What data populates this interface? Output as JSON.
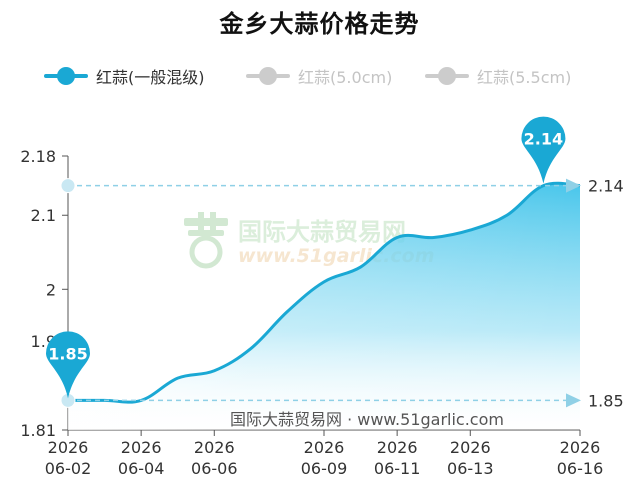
{
  "title": "金乡大蒜价格走势",
  "legend": [
    {
      "label": "红蒜(一般混级)",
      "color": "#1aa8d4",
      "active": true
    },
    {
      "label": "红蒜(5.0cm)",
      "color": "#cccccc",
      "active": false
    },
    {
      "label": "红蒜(5.5cm)",
      "color": "#cccccc",
      "active": false
    }
  ],
  "watermark": {
    "cn": "国际大蒜贸易网",
    "url": "www.51garlic.com"
  },
  "footer": "国际大蒜贸易网 · www.51garlic.com",
  "chart_data": {
    "type": "area",
    "series": [
      {
        "name": "红蒜(一般混级)",
        "color": "#1aa8d4",
        "points": [
          [
            "2026-06-02",
            1.85
          ],
          [
            "2026-06-03",
            1.85
          ],
          [
            "2026-06-04",
            1.85
          ],
          [
            "2026-06-05",
            1.88
          ],
          [
            "2026-06-06",
            1.89
          ],
          [
            "2026-06-07",
            1.92
          ],
          [
            "2026-06-08",
            1.97
          ],
          [
            "2026-06-09",
            2.01
          ],
          [
            "2026-06-10",
            2.03
          ],
          [
            "2026-06-11",
            2.07
          ],
          [
            "2026-06-12",
            2.07
          ],
          [
            "2026-06-13",
            2.08
          ],
          [
            "2026-06-14",
            2.1
          ],
          [
            "2026-06-15",
            2.14
          ],
          [
            "2026-06-16",
            2.14
          ]
        ]
      }
    ],
    "x_ticks": [
      {
        "date": "2026-06-02",
        "year": "2026",
        "md": "06-02"
      },
      {
        "date": "2026-06-04",
        "year": "2026",
        "md": "06-04"
      },
      {
        "date": "2026-06-06",
        "year": "2026",
        "md": "06-06"
      },
      {
        "date": "2026-06-09",
        "year": "2026",
        "md": "06-09"
      },
      {
        "date": "2026-06-11",
        "year": "2026",
        "md": "06-11"
      },
      {
        "date": "2026-06-13",
        "year": "2026",
        "md": "06-13"
      },
      {
        "date": "2026-06-16",
        "year": "2026",
        "md": "06-16"
      }
    ],
    "y_ticks": [
      {
        "value": 1.81,
        "label": "1.81"
      },
      {
        "value": 1.93,
        "label": "1.9"
      },
      {
        "value": 2.0,
        "label": "2"
      },
      {
        "value": 2.1,
        "label": "2.1"
      },
      {
        "value": 2.18,
        "label": "2.18"
      }
    ],
    "ylim": [
      1.81,
      2.18
    ],
    "xlim": [
      "2026-06-02",
      "2026-06-16"
    ],
    "max": {
      "value": 2.14,
      "label": "2.14"
    },
    "min": {
      "value": 1.85,
      "label": "1.85"
    },
    "right_labels": [
      {
        "value": 2.14,
        "label": "2.14"
      },
      {
        "value": 1.85,
        "label": "1.85"
      }
    ],
    "grid": false
  }
}
